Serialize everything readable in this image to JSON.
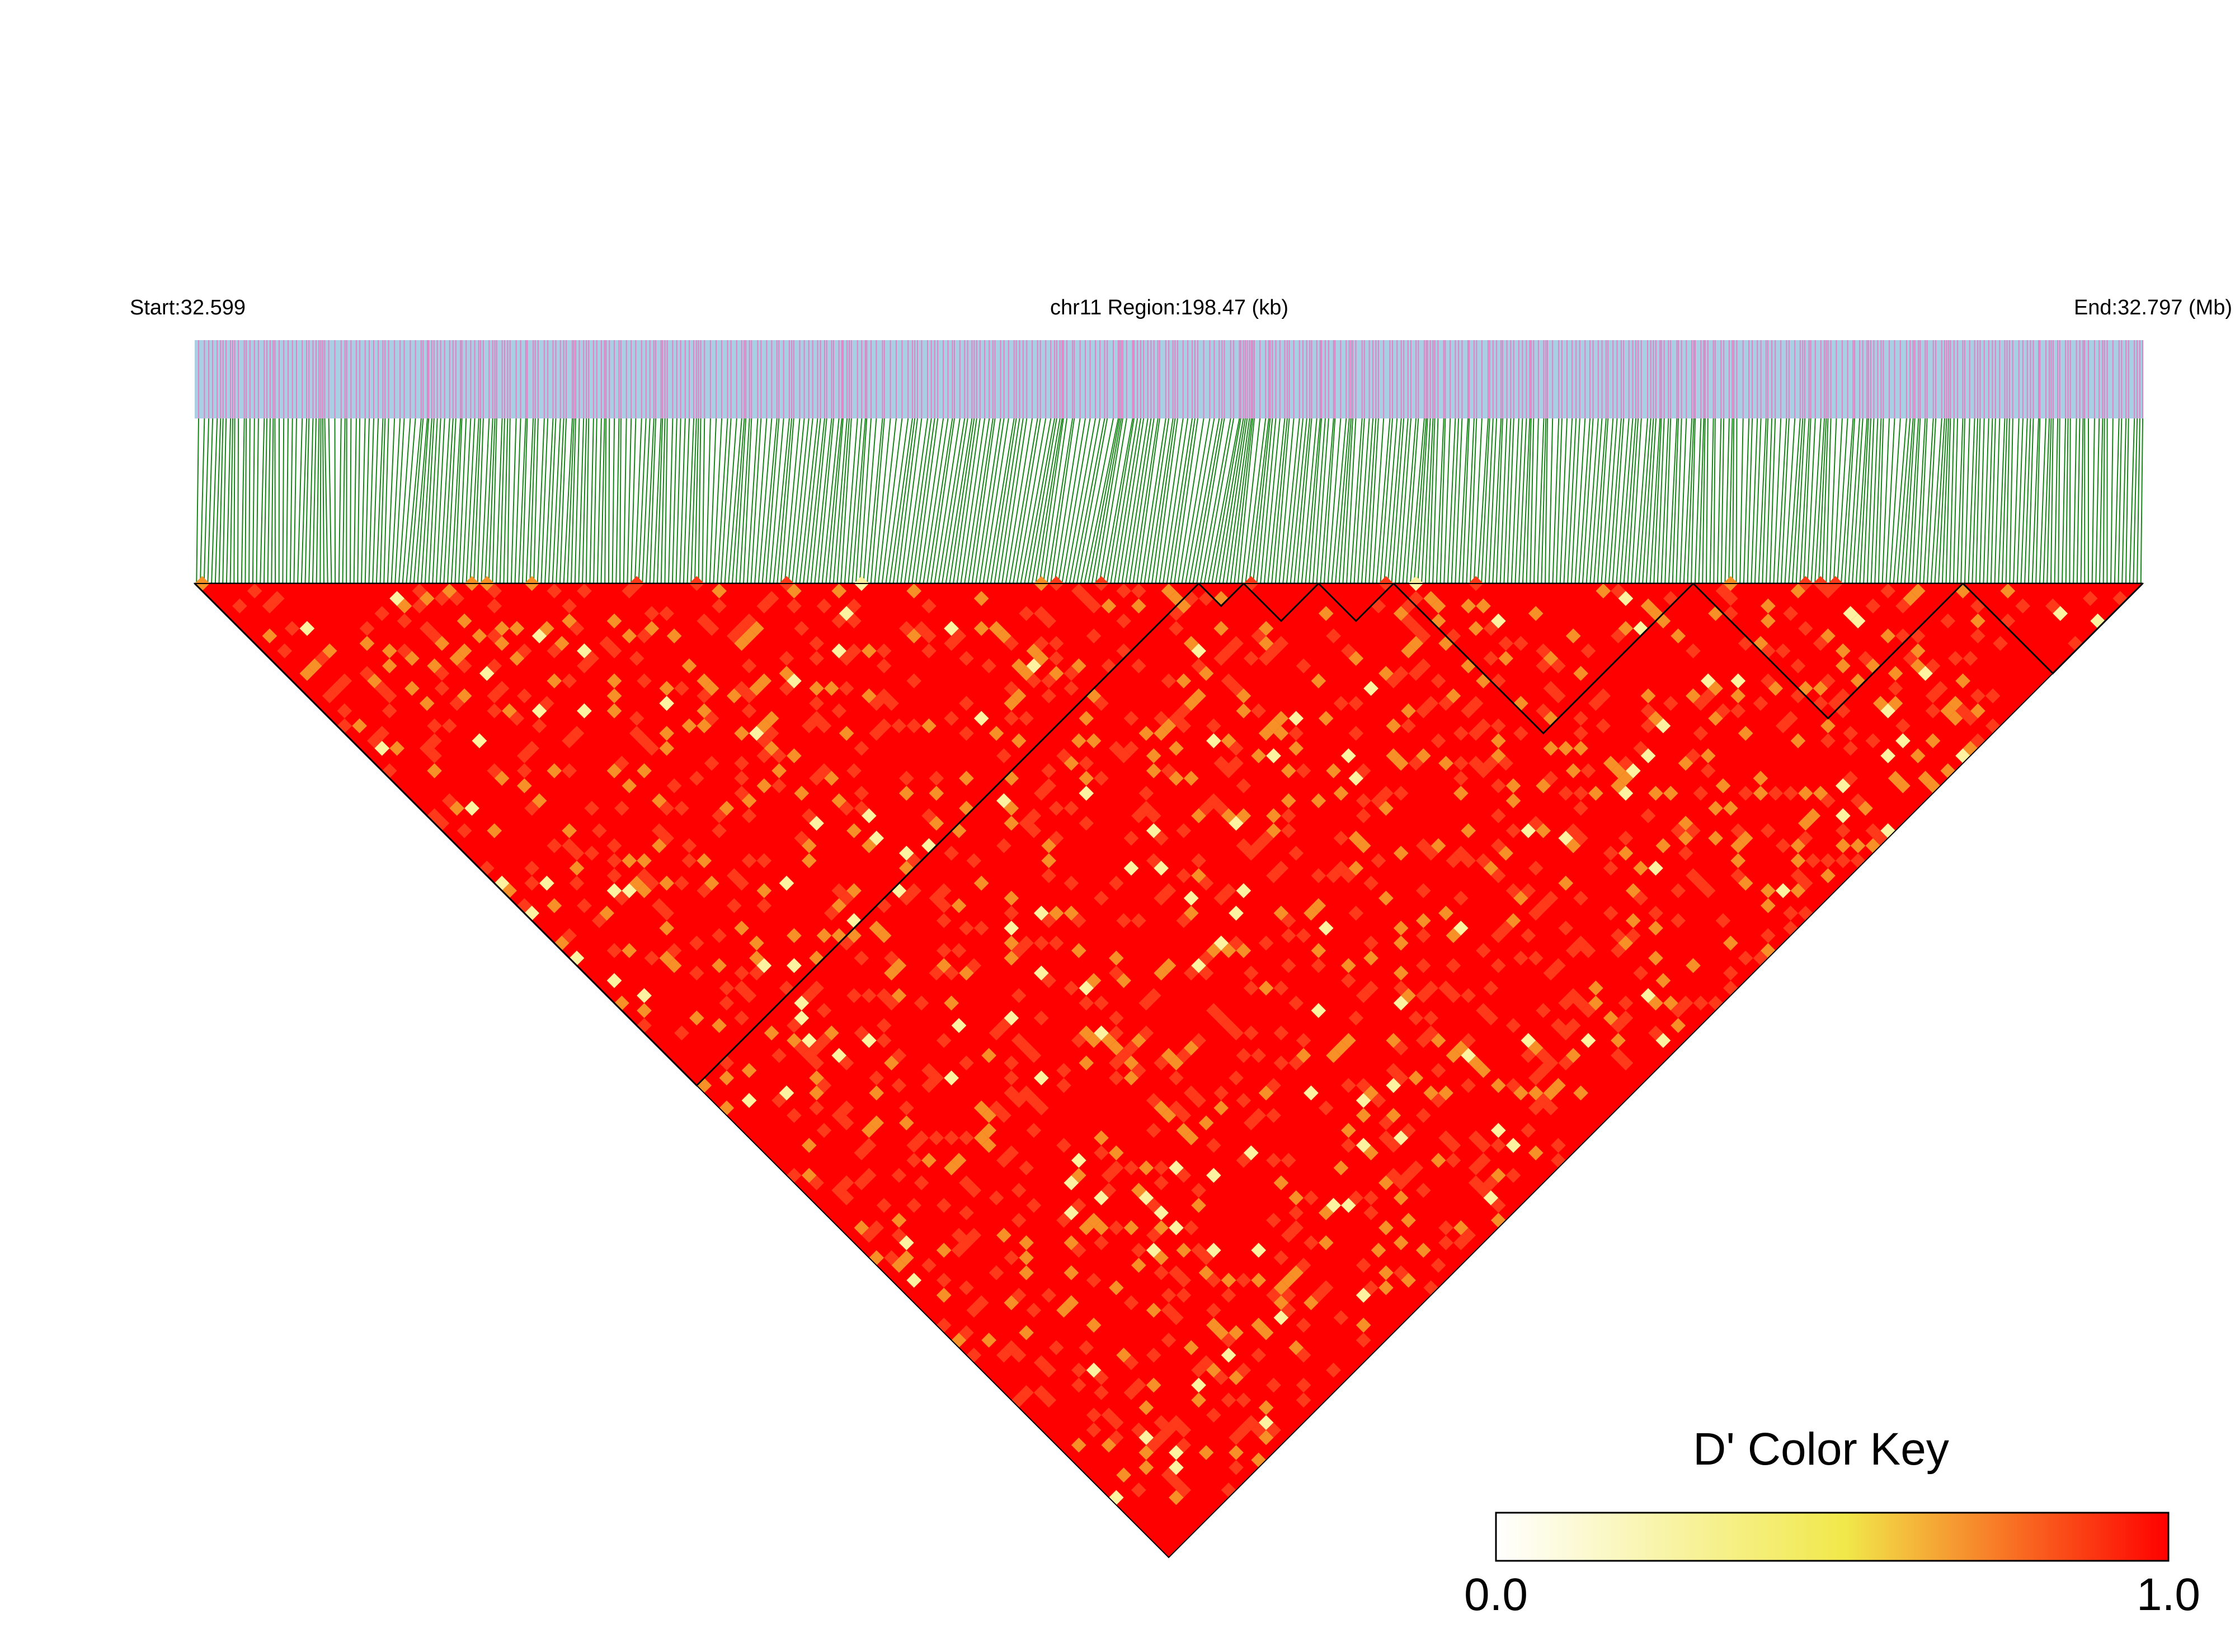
{
  "chart_data": {
    "type": "heatmap",
    "title": "",
    "header": {
      "start_label": "Start:32.599",
      "region_label": "chr11 Region:198.47 (kb)",
      "end_label": "End:32.797 (Mb)"
    },
    "region": {
      "chromosome": "chr11",
      "start_mb": 32.599,
      "end_mb": 32.797,
      "length_kb": 198.47
    },
    "matrix_value_range": [
      0.0,
      1.0
    ],
    "color_key": {
      "title": "D' Color Key",
      "min_label": "0.0",
      "max_label": "1.0",
      "min": 0.0,
      "max": 1.0,
      "colors": [
        "#ffffff",
        "#f1e84a",
        "#ff0000"
      ]
    },
    "colors": {
      "track_bg": "#a8cfe4",
      "snp_tick": "#e082c4",
      "connector": "#188518",
      "cell_high": "#ff0000",
      "cell_mid": "#f89028",
      "cell_low": "#fff2a0",
      "block_outline": "#000000"
    }
  }
}
